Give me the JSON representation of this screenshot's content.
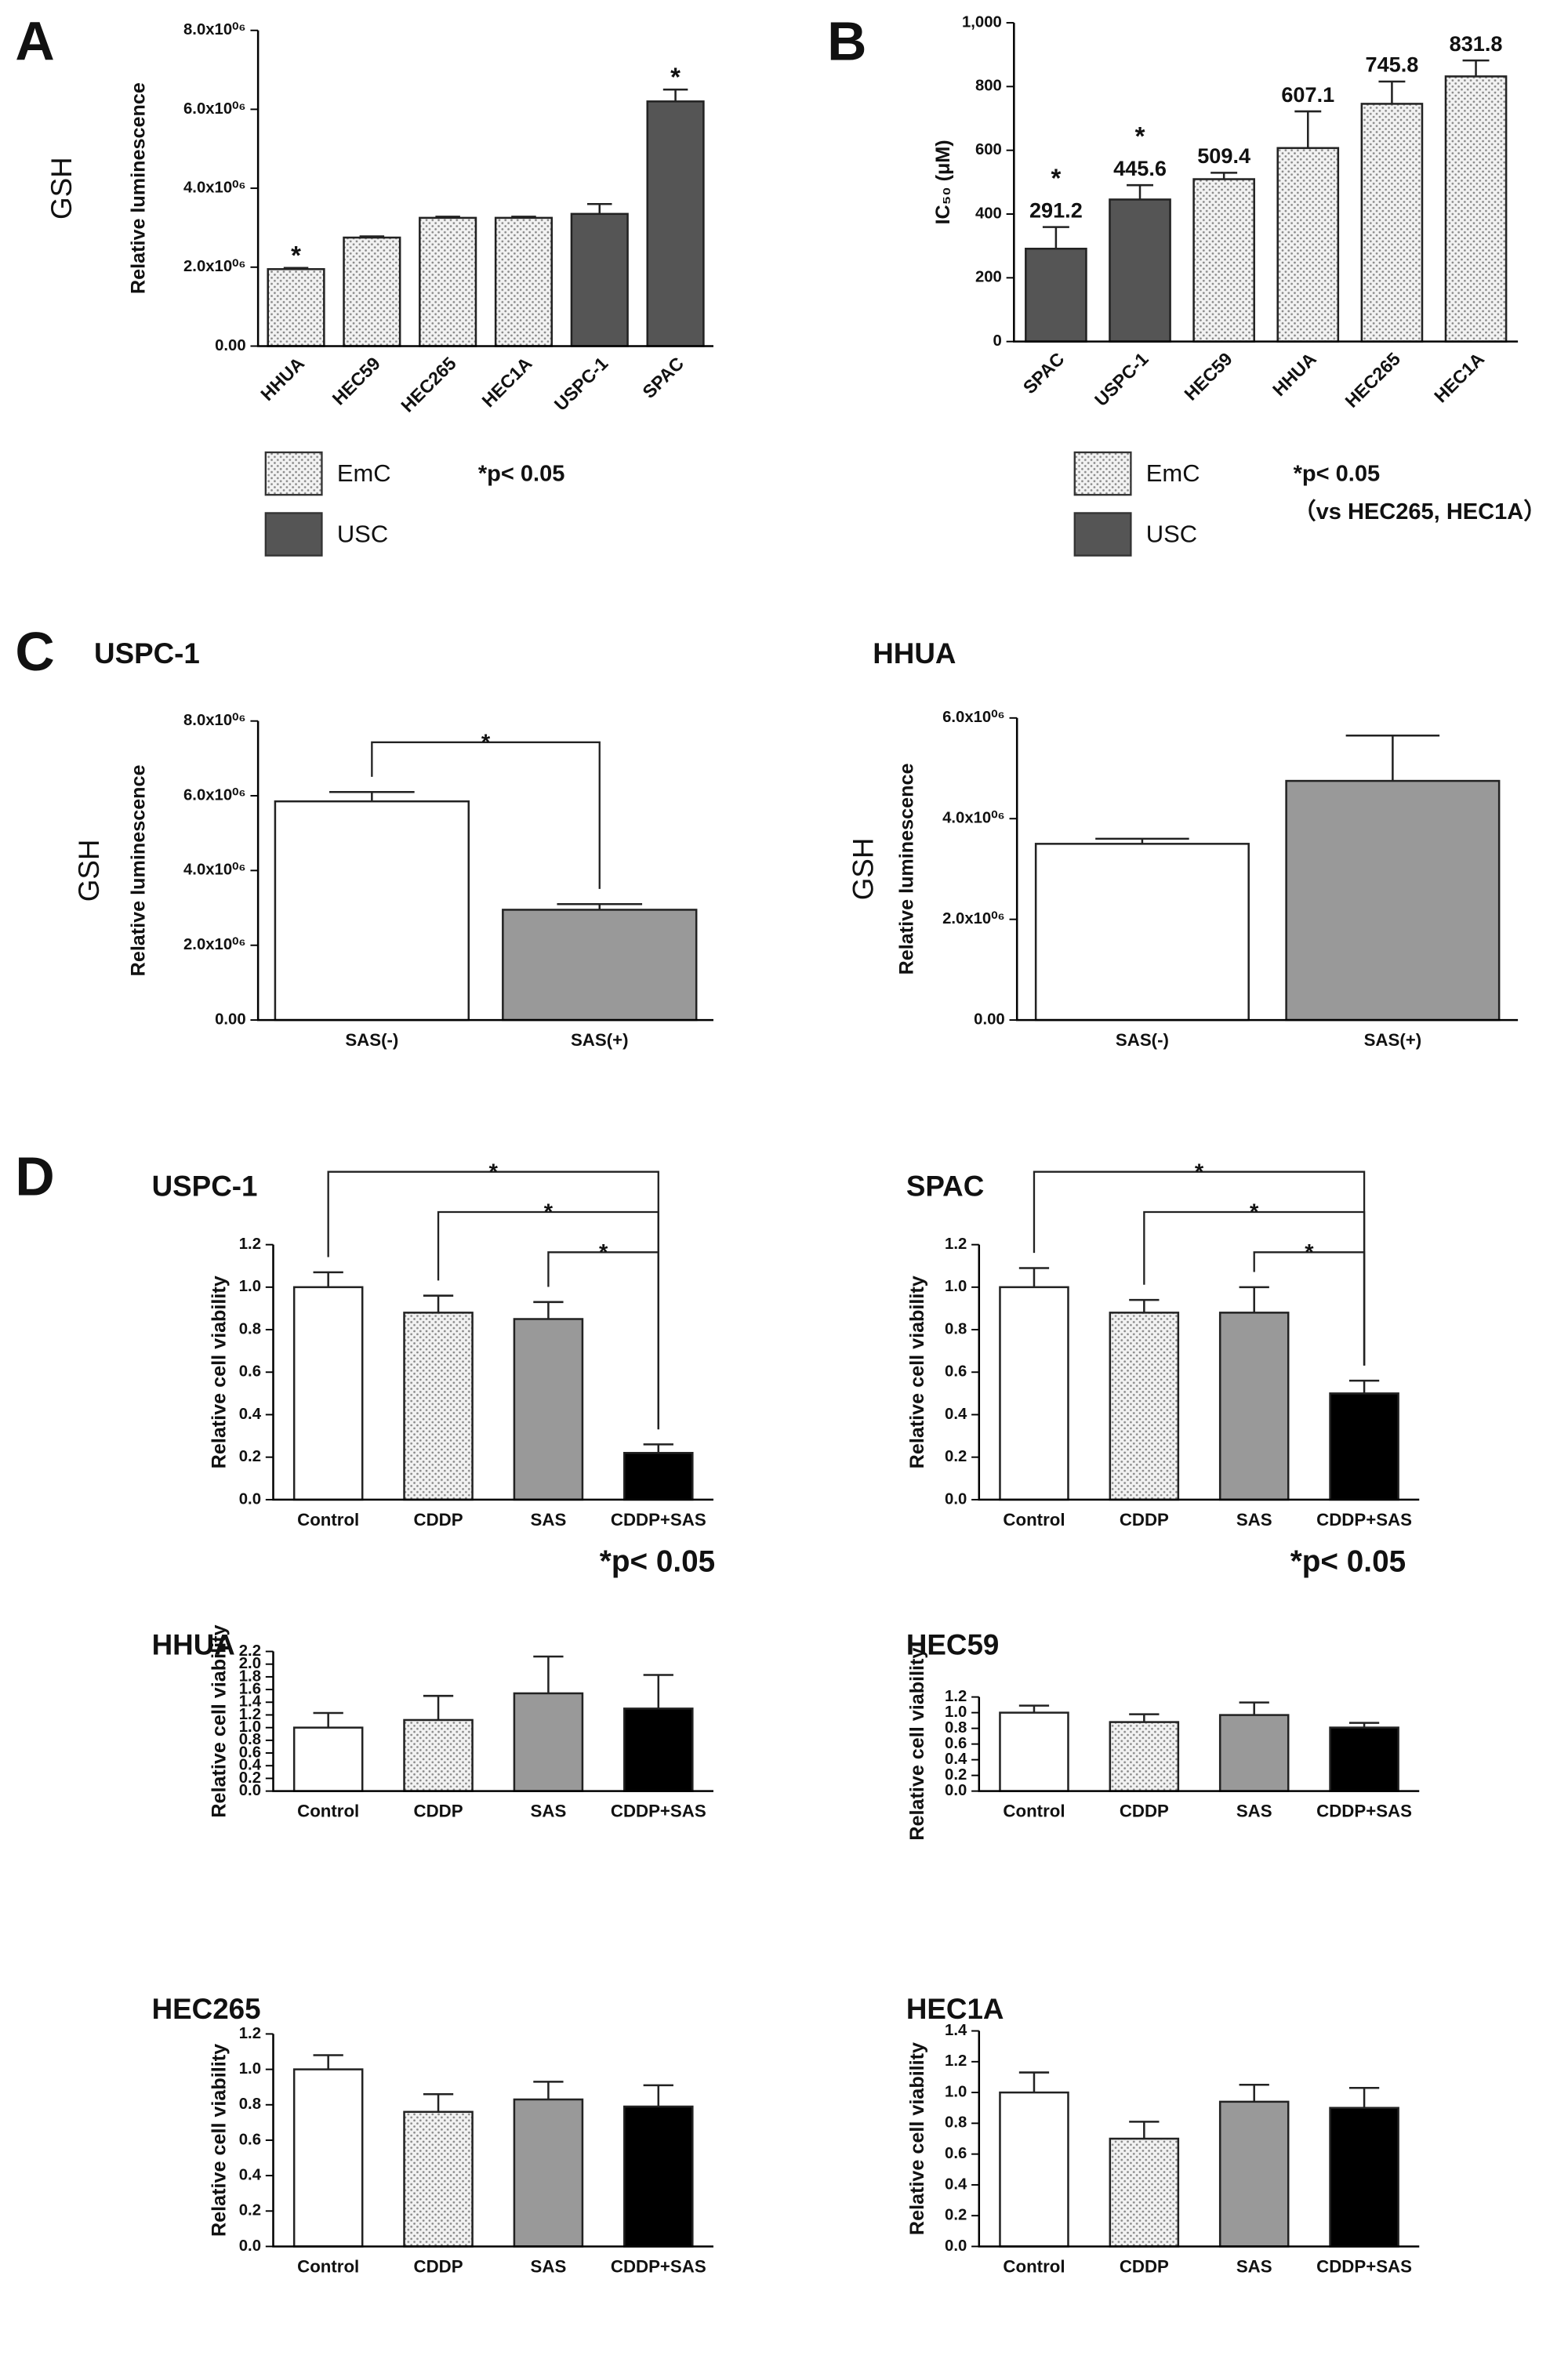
{
  "chart_data": [
    {
      "type": "bar",
      "panel": "A",
      "y_group_label": "GSH",
      "ylabel": "Relative luminescence",
      "categories": [
        "HHUA",
        "HEC59",
        "HEC265",
        "HEC1A",
        "USPC-1",
        "SPAC"
      ],
      "values": [
        1950000,
        2750000,
        3250000,
        3250000,
        3350000,
        6200000
      ],
      "errors": [
        30000,
        30000,
        30000,
        30000,
        250000,
        300000
      ],
      "colors": [
        "dots",
        "dots",
        "dots",
        "dots",
        "#555555",
        "#555555"
      ],
      "bar_labels": [
        "*",
        null,
        null,
        null,
        null,
        "*"
      ],
      "ylim": [
        0,
        8000000
      ],
      "yticks": [
        {
          "value": 0,
          "label": "0.00"
        },
        {
          "value": 2000000,
          "label": "2.0x10⁰⁶"
        },
        {
          "value": 4000000,
          "label": "4.0x10⁰⁶"
        },
        {
          "value": 6000000,
          "label": "6.0x10⁰⁶"
        },
        {
          "value": 8000000,
          "label": "8.0x10⁰⁶"
        }
      ],
      "legend": [
        {
          "name": "EmC",
          "color": "dots"
        },
        {
          "name": "USC",
          "color": "#555555"
        }
      ],
      "notes": [
        "*p< 0.05"
      ]
    },
    {
      "type": "bar",
      "panel": "B",
      "ylabel": "IC₅₀ (μM)",
      "categories": [
        "SPAC",
        "USPC-1",
        "HEC59",
        "HHUA",
        "HEC265",
        "HEC1A"
      ],
      "values": [
        291.2,
        445.6,
        509.4,
        607.1,
        745.8,
        831.8
      ],
      "errors": [
        68,
        45,
        20,
        115,
        70,
        50
      ],
      "colors": [
        "#555555",
        "#555555",
        "dots",
        "dots",
        "dots",
        "dots"
      ],
      "bar_labels": [
        "*",
        "*",
        null,
        null,
        null,
        null
      ],
      "show_values": true,
      "ylim": [
        0,
        1000
      ],
      "yticks": [
        0,
        200,
        400,
        600,
        800,
        {
          "value": 1000,
          "label": "1,000"
        }
      ],
      "legend": [
        {
          "name": "EmC",
          "color": "dots"
        },
        {
          "name": "USC",
          "color": "#555555"
        }
      ],
      "notes": [
        "*p< 0.05",
        "（vs HEC265, HEC1A）"
      ]
    },
    {
      "type": "bar",
      "panel": "C",
      "title": "USPC-1",
      "y_group_label": "GSH",
      "ylabel": "Relative luminescence",
      "categories": [
        "SAS(-)",
        "SAS(+)"
      ],
      "values": [
        5850000,
        2950000
      ],
      "errors": [
        250000,
        150000
      ],
      "colors": [
        "#ffffff",
        "#999999"
      ],
      "ylim": [
        0,
        8000000
      ],
      "yticks": [
        {
          "value": 0,
          "label": "0.00"
        },
        {
          "value": 2000000,
          "label": "2.0x10⁰⁶"
        },
        {
          "value": 4000000,
          "label": "4.0x10⁰⁶"
        },
        {
          "value": 6000000,
          "label": "6.0x10⁰⁶"
        },
        {
          "value": 8000000,
          "label": "8.0x10⁰⁶"
        }
      ],
      "brackets": [
        {
          "label": "*",
          "between": [
            "SAS(-)",
            "SAS(+)"
          ]
        }
      ]
    },
    {
      "type": "bar",
      "title": "HHUA",
      "y_group_label": "GSH",
      "ylabel": "Relative luminescence",
      "categories": [
        "SAS(-)",
        "SAS(+)"
      ],
      "values": [
        3500000,
        4750000
      ],
      "errors": [
        100000,
        900000
      ],
      "colors": [
        "#ffffff",
        "#999999"
      ],
      "ylim": [
        0,
        6000000
      ],
      "yticks": [
        {
          "value": 0,
          "label": "0.00"
        },
        {
          "value": 2000000,
          "label": "2.0x10⁰⁶"
        },
        {
          "value": 4000000,
          "label": "4.0x10⁰⁶"
        },
        {
          "value": 6000000,
          "label": "6.0x10⁰⁶"
        }
      ]
    },
    {
      "type": "bar",
      "panel": "D",
      "title": "USPC-1",
      "ylabel": "Relative cell viability",
      "categories": [
        "Control",
        "CDDP",
        "SAS",
        "CDDP+SAS"
      ],
      "values": [
        1.0,
        0.88,
        0.85,
        0.22
      ],
      "errors": [
        0.07,
        0.08,
        0.08,
        0.04
      ],
      "colors": [
        "#ffffff",
        "dots",
        "#999999",
        "#000000"
      ],
      "ylim": [
        0,
        1.2
      ],
      "yticks": [
        {
          "value": 0,
          "label": "0.0"
        },
        0.2,
        0.4,
        0.6,
        0.8,
        {
          "value": 1,
          "label": "1.0"
        },
        1.2
      ],
      "brackets": [
        {
          "label": "*",
          "between": [
            "Control",
            "CDDP+SAS"
          ]
        },
        {
          "label": "*",
          "between": [
            "CDDP",
            "CDDP+SAS"
          ]
        },
        {
          "label": "*",
          "between": [
            "SAS",
            "CDDP+SAS"
          ]
        }
      ],
      "notes": [
        "*p< 0.05"
      ]
    },
    {
      "type": "bar",
      "title": "SPAC",
      "ylabel": "Relative cell viability",
      "categories": [
        "Control",
        "CDDP",
        "SAS",
        "CDDP+SAS"
      ],
      "values": [
        1.0,
        0.88,
        0.88,
        0.5
      ],
      "errors": [
        0.09,
        0.06,
        0.12,
        0.06
      ],
      "colors": [
        "#ffffff",
        "dots",
        "#999999",
        "#000000"
      ],
      "ylim": [
        0,
        1.2
      ],
      "yticks": [
        {
          "value": 0,
          "label": "0.0"
        },
        0.2,
        0.4,
        0.6,
        0.8,
        {
          "value": 1,
          "label": "1.0"
        },
        1.2
      ],
      "brackets": [
        {
          "label": "*",
          "between": [
            "Control",
            "CDDP+SAS"
          ]
        },
        {
          "label": "*",
          "between": [
            "CDDP",
            "CDDP+SAS"
          ]
        },
        {
          "label": "*",
          "between": [
            "SAS",
            "CDDP+SAS"
          ]
        }
      ],
      "notes": [
        "*p< 0.05"
      ]
    },
    {
      "type": "bar",
      "title": "HHUA",
      "ylabel": "Relative cell viability",
      "categories": [
        "Control",
        "CDDP",
        "SAS",
        "CDDP+SAS"
      ],
      "values": [
        1.0,
        1.12,
        1.54,
        1.3
      ],
      "errors": [
        0.23,
        0.38,
        0.58,
        0.53
      ],
      "colors": [
        "#ffffff",
        "dots",
        "#999999",
        "#000000"
      ],
      "ylim": [
        0,
        2.2
      ],
      "yticks": [
        {
          "value": 0,
          "label": "0.0"
        },
        0.2,
        0.4,
        0.6,
        0.8,
        {
          "value": 1,
          "label": "1.0"
        },
        1.2,
        1.4,
        1.6,
        1.8,
        {
          "value": 2,
          "label": "2.0"
        },
        2.2
      ]
    },
    {
      "type": "bar",
      "title": "HEC59",
      "ylabel": "Relative cell viability",
      "categories": [
        "Control",
        "CDDP",
        "SAS",
        "CDDP+SAS"
      ],
      "values": [
        1.0,
        0.88,
        0.97,
        0.81
      ],
      "errors": [
        0.09,
        0.1,
        0.16,
        0.06
      ],
      "colors": [
        "#ffffff",
        "dots",
        "#999999",
        "#000000"
      ],
      "ylim": [
        0,
        1.2
      ],
      "yticks": [
        {
          "value": 0,
          "label": "0.0"
        },
        0.2,
        0.4,
        0.6,
        0.8,
        {
          "value": 1,
          "label": "1.0"
        },
        1.2
      ]
    },
    {
      "type": "bar",
      "title": "HEC265",
      "ylabel": "Relative cell viability",
      "categories": [
        "Control",
        "CDDP",
        "SAS",
        "CDDP+SAS"
      ],
      "values": [
        1.0,
        0.76,
        0.83,
        0.79
      ],
      "errors": [
        0.08,
        0.1,
        0.1,
        0.12
      ],
      "colors": [
        "#ffffff",
        "dots",
        "#999999",
        "#000000"
      ],
      "ylim": [
        0,
        1.2
      ],
      "yticks": [
        {
          "value": 0,
          "label": "0.0"
        },
        0.2,
        0.4,
        0.6,
        0.8,
        {
          "value": 1,
          "label": "1.0"
        },
        1.2
      ]
    },
    {
      "type": "bar",
      "title": "HEC1A",
      "ylabel": "Relative cell viability",
      "categories": [
        "Control",
        "CDDP",
        "SAS",
        "CDDP+SAS"
      ],
      "values": [
        1.0,
        0.7,
        0.94,
        0.9
      ],
      "errors": [
        0.13,
        0.11,
        0.11,
        0.13
      ],
      "colors": [
        "#ffffff",
        "dots",
        "#999999",
        "#000000"
      ],
      "ylim": [
        0,
        1.4
      ],
      "yticks": [
        {
          "value": 0,
          "label": "0.0"
        },
        0.2,
        0.4,
        0.6,
        0.8,
        {
          "value": 1,
          "label": "1.0"
        },
        1.2,
        1.4
      ]
    }
  ]
}
